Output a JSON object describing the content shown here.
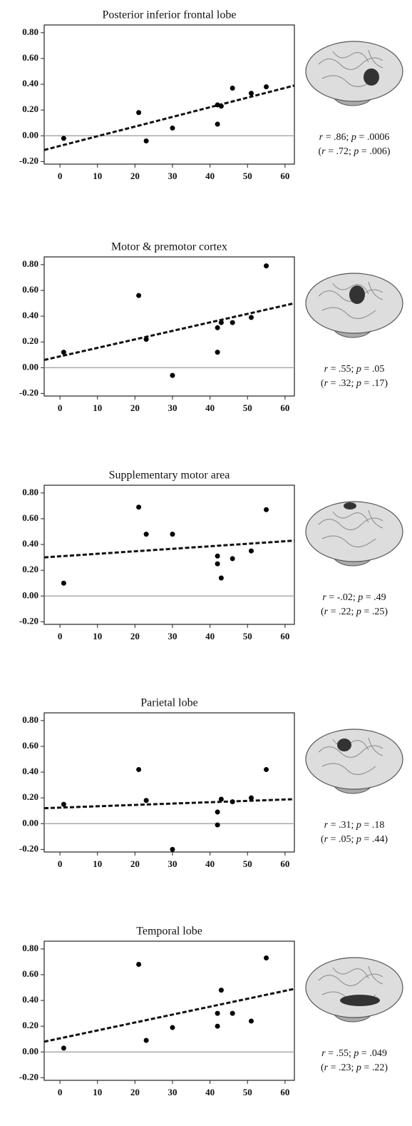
{
  "chart_data": [
    {
      "type": "scatter",
      "title": "Posterior inferior frontal lobe",
      "x": [
        1,
        21,
        23,
        30,
        42,
        42,
        43,
        46,
        51,
        55
      ],
      "y": [
        -0.02,
        0.18,
        -0.04,
        0.06,
        0.24,
        0.09,
        0.23,
        0.37,
        0.33,
        0.38
      ],
      "color": "#000000",
      "fit_line": {
        "x": [
          -4.2,
          62.5
        ],
        "y": [
          -0.11,
          0.39
        ]
      },
      "xlim": [
        -4.2,
        62.5
      ],
      "xticks": [
        0,
        10,
        20,
        30,
        40,
        50,
        60
      ],
      "ylim": [
        -0.22,
        0.86
      ],
      "yticks": [
        {
          "value": -0.2,
          "label": "-0.20"
        },
        {
          "value": 0,
          "label": "0.00"
        },
        {
          "value": 0.2,
          "label": "0.20"
        },
        {
          "value": 0.4,
          "label": "0.40"
        },
        {
          "value": 0.6,
          "label": "0.60"
        },
        {
          "value": 0.8,
          "label": "0.80"
        }
      ],
      "annotations": [
        "r = .86; p = .0006",
        "(r = .72; p = .006)"
      ]
    },
    {
      "type": "scatter",
      "title": "Motor & premotor cortex",
      "x": [
        1,
        21,
        23,
        30,
        42,
        42,
        43,
        46,
        51,
        55
      ],
      "y": [
        0.12,
        0.56,
        0.22,
        -0.06,
        0.31,
        0.12,
        0.35,
        0.35,
        0.39,
        0.79
      ],
      "color": "#000000",
      "fit_line": {
        "x": [
          -4.2,
          62.5
        ],
        "y": [
          0.06,
          0.5
        ]
      },
      "xlim": [
        -4.2,
        62.5
      ],
      "xticks": [
        0,
        10,
        20,
        30,
        40,
        50,
        60
      ],
      "ylim": [
        -0.22,
        0.86
      ],
      "yticks": [
        {
          "value": -0.2,
          "label": "-0.20"
        },
        {
          "value": 0,
          "label": "0.00"
        },
        {
          "value": 0.2,
          "label": "0.20"
        },
        {
          "value": 0.4,
          "label": "0.40"
        },
        {
          "value": 0.6,
          "label": "0.60"
        },
        {
          "value": 0.8,
          "label": "0.80"
        }
      ],
      "annotations": [
        "r = .55; p = .05",
        "(r = .32; p = .17)"
      ]
    },
    {
      "type": "scatter",
      "title": "Supplementary motor area",
      "x": [
        1,
        21,
        23,
        30,
        42,
        42,
        43,
        46,
        51,
        55
      ],
      "y": [
        0.1,
        0.69,
        0.48,
        0.48,
        0.31,
        0.25,
        0.14,
        0.29,
        0.35,
        0.67
      ],
      "color": "#000000",
      "fit_line": {
        "x": [
          -4.2,
          62.5
        ],
        "y": [
          0.3,
          0.43
        ]
      },
      "xlim": [
        -4.2,
        62.5
      ],
      "xticks": [
        0,
        10,
        20,
        30,
        40,
        50,
        60
      ],
      "ylim": [
        -0.22,
        0.86
      ],
      "yticks": [
        {
          "value": -0.2,
          "label": "-0.20"
        },
        {
          "value": 0,
          "label": "0.00"
        },
        {
          "value": 0.2,
          "label": "0.20"
        },
        {
          "value": 0.4,
          "label": "0.40"
        },
        {
          "value": 0.6,
          "label": "0.60"
        },
        {
          "value": 0.8,
          "label": "0.80"
        }
      ],
      "annotations": [
        "r = -.02; p = .49",
        "(r = .22; p = .25)"
      ]
    },
    {
      "type": "scatter",
      "title": "Parietal lobe",
      "x": [
        1,
        21,
        23,
        30,
        42,
        42,
        43,
        46,
        51,
        55
      ],
      "y": [
        0.15,
        0.42,
        0.18,
        -0.2,
        0.09,
        -0.01,
        0.19,
        0.17,
        0.2,
        0.42
      ],
      "color": "#000000",
      "fit_line": {
        "x": [
          -4.2,
          62.5
        ],
        "y": [
          0.12,
          0.19
        ]
      },
      "xlim": [
        -4.2,
        62.5
      ],
      "xticks": [
        0,
        10,
        20,
        30,
        40,
        50,
        60
      ],
      "ylim": [
        -0.22,
        0.86
      ],
      "yticks": [
        {
          "value": -0.2,
          "label": "-0.20"
        },
        {
          "value": 0,
          "label": "0.00"
        },
        {
          "value": 0.2,
          "label": "0.20"
        },
        {
          "value": 0.4,
          "label": "0.40"
        },
        {
          "value": 0.6,
          "label": "0.60"
        },
        {
          "value": 0.8,
          "label": "0.80"
        }
      ],
      "annotations": [
        "r = .31; p = .18",
        "(r = .05; p = .44)"
      ]
    },
    {
      "type": "scatter",
      "title": "Temporal lobe",
      "x": [
        1,
        21,
        23,
        30,
        42,
        42,
        43,
        46,
        51,
        55
      ],
      "y": [
        0.03,
        0.68,
        0.09,
        0.19,
        0.3,
        0.2,
        0.48,
        0.3,
        0.24,
        0.73
      ],
      "color": "#000000",
      "fit_line": {
        "x": [
          -4.2,
          62.5
        ],
        "y": [
          0.08,
          0.49
        ]
      },
      "xlim": [
        -4.2,
        62.5
      ],
      "xticks": [
        0,
        10,
        20,
        30,
        40,
        50,
        60
      ],
      "ylim": [
        -0.22,
        0.86
      ],
      "yticks": [
        {
          "value": -0.2,
          "label": "-0.20"
        },
        {
          "value": 0,
          "label": "0.00"
        },
        {
          "value": 0.2,
          "label": "0.20"
        },
        {
          "value": 0.4,
          "label": "0.40"
        },
        {
          "value": 0.6,
          "label": "0.60"
        },
        {
          "value": 0.8,
          "label": "0.80"
        }
      ],
      "annotations": [
        "r = .55; p = .049",
        "(r = .23; p = .22)"
      ]
    }
  ]
}
